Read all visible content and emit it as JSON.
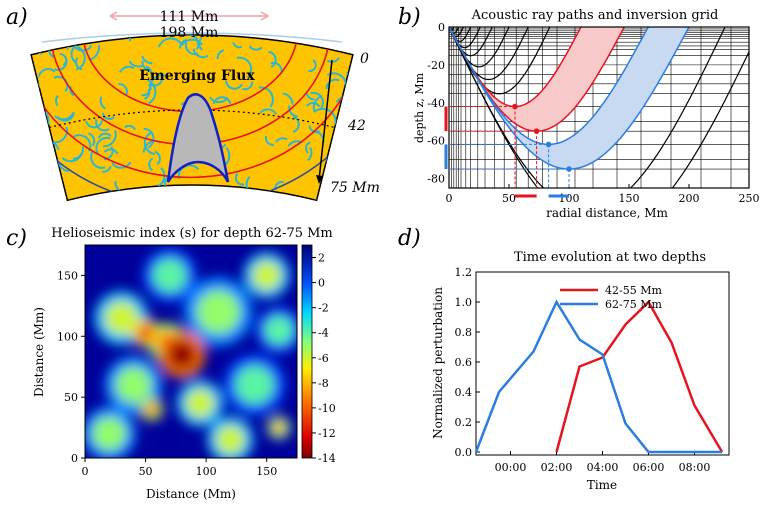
{
  "panels": {
    "a": {
      "letter": "a)",
      "label_outer": "111 Mm",
      "label_inner": "198 Mm",
      "depth_0": "0",
      "depth_42": "42",
      "depth_75": "75 Mm",
      "emerging_label": "Emerging Flux",
      "colors": {
        "plasma": "#ffc400",
        "swirl": "#2ab7d6",
        "ray_red": "#e6141e",
        "ray_blue": "#2a4aa8",
        "flux": "#1020c8"
      }
    },
    "b": {
      "letter": "b)",
      "chart_data": {
        "type": "line",
        "title": "Acoustic ray paths and inversion grid",
        "xlabel": "radial distance, Mm",
        "ylabel": "depth z, Mm",
        "xlim": [
          0,
          250
        ],
        "ylim": [
          -85,
          0
        ],
        "x_ticks": [
          0,
          50,
          100,
          150,
          200,
          250
        ],
        "y_ticks": [
          0,
          -20,
          -40,
          -60,
          -80
        ],
        "series": [
          {
            "name": "ray-red-1",
            "color": "#e6141e",
            "turning_x": 55,
            "turning_z": -42,
            "span": 110
          },
          {
            "name": "ray-red-2",
            "color": "#e6141e",
            "turning_x": 73,
            "turning_z": -55,
            "span": 146
          },
          {
            "name": "ray-blue-1",
            "color": "#2a7de1",
            "turning_x": 83,
            "turning_z": -62,
            "span": 166
          },
          {
            "name": "ray-blue-2",
            "color": "#2a7de1",
            "turning_x": 100,
            "turning_z": -75,
            "span": 200
          }
        ],
        "black_ray_spans": [
          4,
          8,
          12,
          18,
          26,
          36,
          50,
          66,
          84,
          230,
          260
        ]
      }
    },
    "c": {
      "letter": "c)",
      "chart_data": {
        "type": "heatmap",
        "title": "Helioseismic index (s) for depth 62-75 Mm",
        "xlabel": "Distance (Mm)",
        "ylabel": "Distance (Mm)",
        "xlim": [
          0,
          175
        ],
        "ylim": [
          0,
          175
        ],
        "x_ticks": [
          0,
          50,
          100,
          150
        ],
        "y_ticks": [
          0,
          50,
          100,
          150
        ],
        "colorbar_ticks": [
          2,
          0,
          -2,
          -4,
          -6,
          -8,
          -10,
          -12,
          -14
        ],
        "colorbar_range": [
          -14,
          3
        ],
        "hotspots": [
          {
            "x": 80,
            "y": 85,
            "value": -13.5,
            "r": 12
          },
          {
            "x": 50,
            "y": 103,
            "value": -11,
            "r": 7
          },
          {
            "x": 68,
            "y": 95,
            "value": -9,
            "r": 10
          },
          {
            "x": 30,
            "y": 115,
            "value": -6,
            "r": 14
          },
          {
            "x": 110,
            "y": 120,
            "value": -5,
            "r": 18
          },
          {
            "x": 150,
            "y": 150,
            "value": -6,
            "r": 12
          },
          {
            "x": 40,
            "y": 60,
            "value": -5,
            "r": 15
          },
          {
            "x": 95,
            "y": 45,
            "value": -6,
            "r": 12
          },
          {
            "x": 140,
            "y": 60,
            "value": -4,
            "r": 16
          },
          {
            "x": 20,
            "y": 20,
            "value": -5,
            "r": 14
          },
          {
            "x": 120,
            "y": 15,
            "value": -6,
            "r": 12
          },
          {
            "x": 160,
            "y": 105,
            "value": -4,
            "r": 12
          },
          {
            "x": 70,
            "y": 150,
            "value": -4,
            "r": 14
          },
          {
            "x": 55,
            "y": 40,
            "value": -9,
            "r": 6
          },
          {
            "x": 160,
            "y": 25,
            "value": -8,
            "r": 6
          }
        ]
      }
    },
    "d": {
      "letter": "d)",
      "chart_data": {
        "type": "line",
        "title": "Time evolution at two depths",
        "xlabel": "Time",
        "ylabel": "Normalized perturbation",
        "xlim": [
          -1.5,
          9.5
        ],
        "ylim": [
          0,
          1.2
        ],
        "x_ticks": [
          {
            "v": 0,
            "label": "00:00"
          },
          {
            "v": 2,
            "label": "02:00"
          },
          {
            "v": 4,
            "label": "04:00"
          },
          {
            "v": 6,
            "label": "06:00"
          },
          {
            "v": 8,
            "label": "08:00"
          }
        ],
        "y_ticks": [
          0.0,
          0.2,
          0.4,
          0.6,
          0.8,
          1.0,
          1.2
        ],
        "series": [
          {
            "name": "42-55 Mm",
            "color": "#e6141e",
            "x": [
              2,
              3,
              4,
              5,
              6,
              7,
              8,
              9.2
            ],
            "y": [
              0.0,
              0.57,
              0.63,
              0.85,
              1.0,
              0.73,
              0.31,
              0.0
            ]
          },
          {
            "name": "62-75 Mm",
            "color": "#2a7de1",
            "x": [
              -1.5,
              -0.5,
              1,
              2,
              3,
              4,
              5,
              6,
              9.2
            ],
            "y": [
              0.0,
              0.4,
              0.67,
              1.0,
              0.75,
              0.65,
              0.19,
              0.0,
              0.0
            ]
          }
        ]
      }
    }
  }
}
